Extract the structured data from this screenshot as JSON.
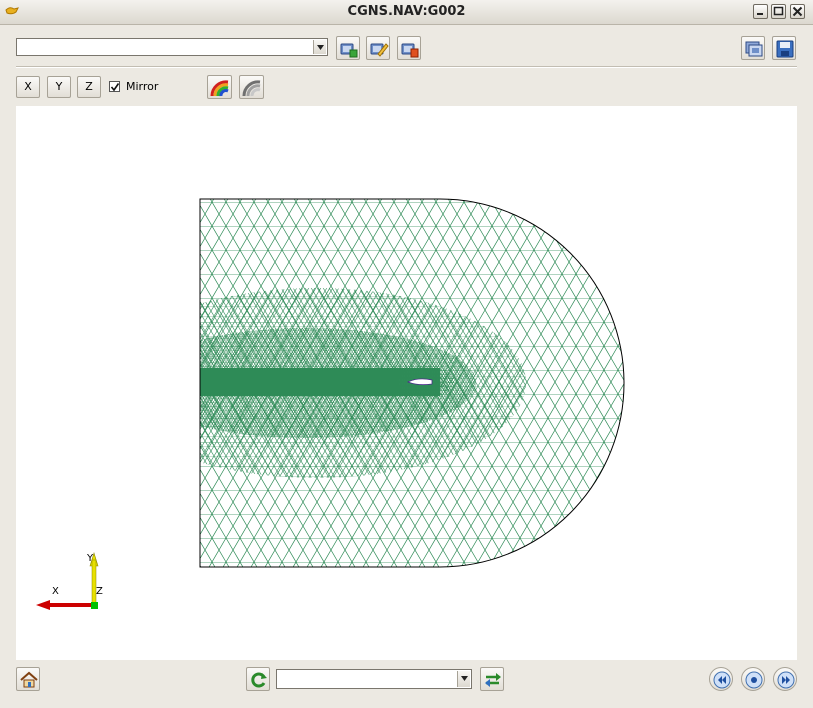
{
  "window": {
    "title": "CGNS.NAV:G002",
    "controls": [
      "minimize-icon",
      "maximize-icon",
      "close-icon"
    ]
  },
  "toolbar": {
    "path_combo_value": "",
    "icons": [
      "tree-add-icon",
      "edit-icon",
      "tree-remove-icon",
      "snapshot-icon",
      "save-icon"
    ]
  },
  "view_toolbar": {
    "x_label": "X",
    "y_label": "Y",
    "z_label": "Z",
    "mirror_label": "Mirror",
    "mirror_checked": true,
    "icons": [
      "color-rainbow-icon",
      "grey-surface-icon"
    ]
  },
  "axes": {
    "x_label": "X",
    "y_label": "Y",
    "z_label": "Z",
    "colors": {
      "x": "#cc0000",
      "y": "#e8e000",
      "z": "#00c000"
    }
  },
  "mesh": {
    "color": "#2e8b57",
    "boundary_color": "#000000",
    "background": "#ffffff"
  },
  "bottom_bar": {
    "selection_combo_value": "",
    "icons": [
      "home-icon",
      "refresh-icon",
      "cycle-icon",
      "previous-icon",
      "stop-icon",
      "next-icon"
    ]
  }
}
